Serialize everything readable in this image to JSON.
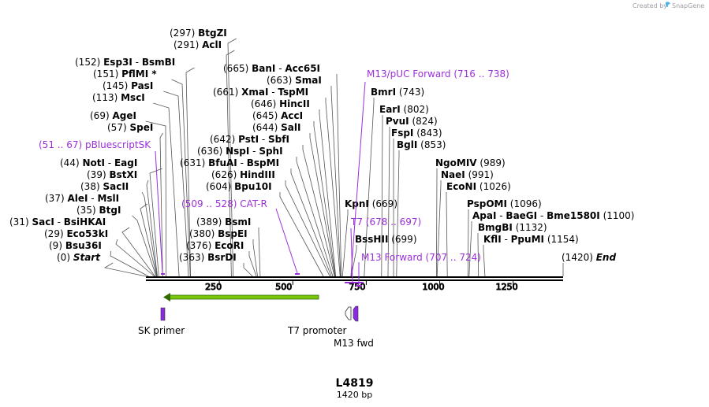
{
  "brand": {
    "text": "Created by",
    "product": "SnapGene"
  },
  "sequence": {
    "name": "L4819",
    "length_label": "1420 bp",
    "length": 1420
  },
  "axis_ticks": [
    "250",
    "500",
    "750",
    "1000",
    "1250"
  ],
  "sites": [
    {
      "pos": "(297)",
      "name": "BtgZI"
    },
    {
      "pos": "(291)",
      "name": "AclI"
    },
    {
      "pos": "(152)",
      "name": "Esp3I",
      "name2": "BsmBI"
    },
    {
      "pos": "(151)",
      "name": "PflMI *"
    },
    {
      "pos": "(145)",
      "name": "PasI"
    },
    {
      "pos": "(113)",
      "name": "MscI"
    },
    {
      "pos": "(69)",
      "name": "AgeI"
    },
    {
      "pos": "(57)",
      "name": "SpeI"
    },
    {
      "pos": "(44)",
      "name": "NotI",
      "name2": "EagI"
    },
    {
      "pos": "(39)",
      "name": "BstXI"
    },
    {
      "pos": "(38)",
      "name": "SacII"
    },
    {
      "pos": "(37)",
      "name": "AleI",
      "name2": "MslI"
    },
    {
      "pos": "(35)",
      "name": "BtgI"
    },
    {
      "pos": "(31)",
      "name": "SacI",
      "name2": "BsiHKAI"
    },
    {
      "pos": "(29)",
      "name": "Eco53kI"
    },
    {
      "pos": "(9)",
      "name": "Bsu36I"
    },
    {
      "pos": "(0)",
      "name": "Start"
    },
    {
      "pos": "(665)",
      "name": "BanI",
      "name2": "Acc65I"
    },
    {
      "pos": "(663)",
      "name": "SmaI"
    },
    {
      "pos": "(661)",
      "name": "XmaI",
      "name2": "TspMI"
    },
    {
      "pos": "(646)",
      "name": "HincII"
    },
    {
      "pos": "(645)",
      "name": "AccI"
    },
    {
      "pos": "(644)",
      "name": "SalI"
    },
    {
      "pos": "(642)",
      "name": "PstI",
      "name2": "SbfI"
    },
    {
      "pos": "(636)",
      "name": "NspI",
      "name2": "SphI"
    },
    {
      "pos": "(631)",
      "name": "BfuAI",
      "name2": "BspMI"
    },
    {
      "pos": "(626)",
      "name": "HindIII"
    },
    {
      "pos": "(604)",
      "name": "Bpu10I"
    },
    {
      "pos": "(389)",
      "name": "BsmI"
    },
    {
      "pos": "(380)",
      "name": "BspEI"
    },
    {
      "pos": "(376)",
      "name": "EcoRI"
    },
    {
      "pos": "(363)",
      "name": "BsrDI"
    },
    {
      "pos": "(743)",
      "name": "BmrI"
    },
    {
      "pos": "(802)",
      "name": "EarI"
    },
    {
      "pos": "(824)",
      "name": "PvuI"
    },
    {
      "pos": "(843)",
      "name": "FspI"
    },
    {
      "pos": "(853)",
      "name": "BglI"
    },
    {
      "pos": "(669)",
      "name": "KpnI"
    },
    {
      "pos": "(699)",
      "name": "BssHII"
    },
    {
      "pos": "(989)",
      "name": "NgoMIV"
    },
    {
      "pos": "(991)",
      "name": "NaeI"
    },
    {
      "pos": "(1026)",
      "name": "EcoNI"
    },
    {
      "pos": "(1096)",
      "name": "PspOMI"
    },
    {
      "pos": "(1100)",
      "name": "ApaI",
      "name2": "BaeGI",
      "name3": "Bme1580I"
    },
    {
      "pos": "(1132)",
      "name": "BmgBI"
    },
    {
      "pos": "(1154)",
      "name": "KflI",
      "name2": "PpuMI"
    },
    {
      "pos": "(1420)",
      "name": "End"
    }
  ],
  "primers": [
    {
      "name": "M13/pUC Forward",
      "range": "(716 .. 738)"
    },
    {
      "name": "pBluescriptSK",
      "range": "(51 .. 67)"
    },
    {
      "name": "CAT-R",
      "range": "(509 .. 528)"
    },
    {
      "name": "T7",
      "range": "(678 .. 697)"
    },
    {
      "name": "M13 Forward",
      "range": "(707 .. 724)"
    }
  ],
  "features": [
    {
      "name": "SK primer"
    },
    {
      "name": "T7 promoter"
    },
    {
      "name": "M13 fwd"
    }
  ],
  "colors": {
    "primer": "#9b30d9",
    "orf": "#7ac70c",
    "orf_dark": "#2f6b00",
    "feature_purple": "#8a2be2",
    "backbone": "#000000"
  }
}
